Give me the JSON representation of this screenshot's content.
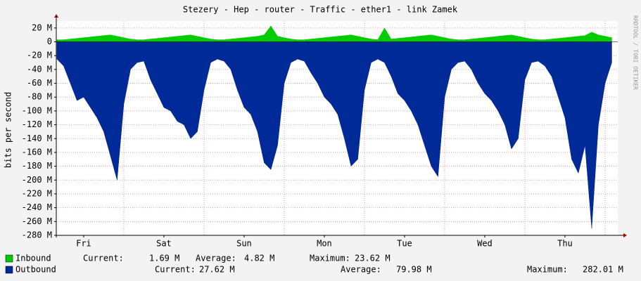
{
  "chart_data": {
    "type": "area",
    "title": "Stezery - Hep - router - Traffic - ether1 - link Zamek",
    "y_label": "bits per second",
    "watermark": "RRDTOOL / TOBI OETIKER",
    "x": [
      4,
      6,
      8,
      10,
      12,
      14,
      16,
      18,
      20,
      22,
      24,
      26,
      28,
      30,
      32,
      34,
      36,
      38,
      40,
      42,
      44,
      46,
      48,
      50,
      52,
      54,
      56,
      58,
      60,
      62,
      64,
      66,
      68,
      70,
      72,
      74,
      76,
      78,
      80,
      82,
      84,
      86,
      88,
      90,
      92,
      94,
      96,
      98,
      100,
      102,
      104,
      106,
      108,
      110,
      112,
      114,
      116,
      118,
      120,
      122,
      124,
      126,
      128,
      130,
      132,
      134,
      136,
      138,
      140,
      142,
      144,
      146,
      148,
      150,
      152,
      154,
      156,
      158,
      160,
      162,
      164,
      166,
      168,
      170
    ],
    "xlim": [
      3.8,
      171.8
    ],
    "xticks": [
      {
        "value": 12,
        "label": "Fri"
      },
      {
        "value": 36,
        "label": "Sat"
      },
      {
        "value": 60,
        "label": "Sun"
      },
      {
        "value": 84,
        "label": "Mon"
      },
      {
        "value": 108,
        "label": "Tue"
      },
      {
        "value": 132,
        "label": "Wed"
      },
      {
        "value": 156,
        "label": "Thu"
      }
    ],
    "xgrid": [
      24,
      48,
      72,
      96,
      120,
      144,
      168
    ],
    "ylim": [
      -280,
      30
    ],
    "yticks": [
      {
        "value": 20,
        "label": "20 M"
      },
      0,
      {
        "value": -20,
        "label": "-20 M"
      },
      {
        "value": -40,
        "label": "-40 M"
      },
      {
        "value": -60,
        "label": "-60 M"
      },
      {
        "value": -80,
        "label": "-80 M"
      },
      {
        "value": -100,
        "label": "-100 M"
      },
      {
        "value": -120,
        "label": "-120 M"
      },
      {
        "value": -140,
        "label": "-140 M"
      },
      {
        "value": -160,
        "label": "-160 M"
      },
      {
        "value": -180,
        "label": "-180 M"
      },
      {
        "value": -200,
        "label": "-200 M"
      },
      {
        "value": -220,
        "label": "-220 M"
      },
      {
        "value": -240,
        "label": "-240 M"
      },
      {
        "value": -260,
        "label": "-260 M"
      },
      {
        "value": -280,
        "label": "-280 M"
      }
    ],
    "grid": true,
    "series": [
      {
        "name": "Inbound",
        "color": "#00cc00",
        "values": [
          3,
          3,
          4,
          5,
          6,
          7,
          8,
          9,
          10,
          8,
          6,
          4,
          3,
          3,
          4,
          5,
          6,
          7,
          8,
          9,
          10,
          8,
          6,
          4,
          3,
          3,
          4,
          5,
          6,
          7,
          8,
          10,
          23,
          8,
          6,
          4,
          3,
          3,
          4,
          5,
          6,
          7,
          8,
          9,
          10,
          8,
          6,
          4,
          3,
          20,
          4,
          5,
          6,
          7,
          8,
          9,
          10,
          8,
          6,
          4,
          3,
          3,
          4,
          5,
          6,
          7,
          8,
          9,
          10,
          8,
          6,
          4,
          3,
          3,
          4,
          5,
          6,
          7,
          8,
          9,
          14,
          10,
          8,
          6
        ],
        "stats": [
          [
            "Current:",
            "1.69 M"
          ],
          [
            "Average:",
            "4.82 M"
          ],
          [
            "Maximum:",
            "23.62 M"
          ]
        ]
      },
      {
        "name": "Outbound",
        "color": "#002a97",
        "values": [
          -25,
          -35,
          -60,
          -85,
          -80,
          -95,
          -110,
          -130,
          -165,
          -200,
          -90,
          -40,
          -30,
          -28,
          -55,
          -75,
          -95,
          -100,
          -115,
          -120,
          -140,
          -130,
          -70,
          -30,
          -25,
          -28,
          -40,
          -70,
          -95,
          -105,
          -130,
          -175,
          -185,
          -150,
          -60,
          -30,
          -25,
          -28,
          -45,
          -60,
          -80,
          -90,
          -105,
          -140,
          -180,
          -170,
          -70,
          -30,
          -25,
          -30,
          -50,
          -75,
          -85,
          -100,
          -120,
          -150,
          -180,
          -195,
          -80,
          -40,
          -30,
          -28,
          -40,
          -60,
          -75,
          -85,
          -100,
          -120,
          -155,
          -140,
          -55,
          -30,
          -28,
          -35,
          -50,
          -80,
          -110,
          -170,
          -190,
          -150,
          -270,
          -120,
          -60,
          -30
        ],
        "stats": [
          [
            "Current:",
            "27.62 M"
          ],
          [
            "Average:",
            "79.98 M"
          ],
          [
            "Maximum:",
            "282.01 M"
          ]
        ]
      }
    ]
  }
}
